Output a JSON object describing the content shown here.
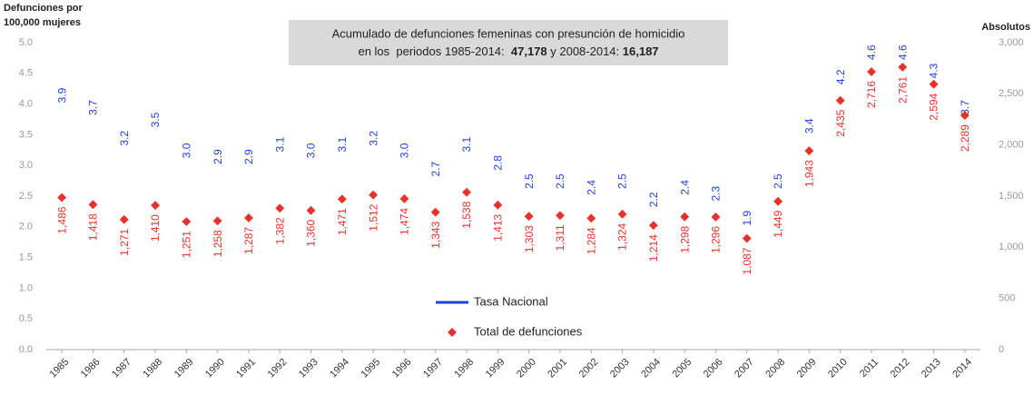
{
  "chart_data": {
    "type": "line",
    "y_title": [
      "Defunciones por",
      "100,000 mujeres"
    ],
    "y2_title": "Absolutos",
    "annotation": [
      "Acumulado de defunciones femeninas con presunción de homicidio",
      "en los  periodos 1985-2014:  ",
      "47,178",
      " y 2008-2014: ",
      "16,187"
    ],
    "categories": [
      "1985",
      "1986",
      "1987",
      "1988",
      "1989",
      "1990",
      "1991",
      "1992",
      "1993",
      "1994",
      "1995",
      "1996",
      "1997",
      "1998",
      "1999",
      "2000",
      "2001",
      "2002",
      "2003",
      "2004",
      "2005",
      "2006",
      "2007",
      "2008",
      "2009",
      "2010",
      "2011",
      "2012",
      "2013",
      "2014"
    ],
    "series": [
      {
        "name": "Tasa Nacional",
        "color": "#1f3fd8",
        "type": "line",
        "values": [
          3.9,
          3.7,
          3.2,
          3.5,
          3.0,
          2.9,
          2.9,
          3.1,
          3.0,
          3.1,
          3.2,
          3.0,
          2.7,
          3.1,
          2.8,
          2.5,
          2.5,
          2.4,
          2.5,
          2.2,
          2.4,
          2.3,
          1.9,
          2.5,
          3.4,
          4.2,
          4.6,
          4.6,
          4.3,
          3.7
        ],
        "value_labels": [
          "3.9",
          "3.7",
          "3.2",
          "3.5",
          "3.0",
          "2.9",
          "2.9",
          "3.1",
          "3.0",
          "3.1",
          "3.2",
          "3.0",
          "2.7",
          "3.1",
          "2.8",
          "2.5",
          "2.5",
          "2.4",
          "2.5",
          "2.2",
          "2.4",
          "2.3",
          "1.9",
          "2.5",
          "3.4",
          "4.2",
          "4.6",
          "4.6",
          "4.3",
          "3.7"
        ]
      },
      {
        "name": "Total de defunciones",
        "color": "#e8312a",
        "type": "scatter",
        "axis": "y2",
        "values": [
          1486,
          1418,
          1271,
          1410,
          1251,
          1258,
          1287,
          1382,
          1360,
          1471,
          1512,
          1474,
          1343,
          1538,
          1413,
          1303,
          1311,
          1284,
          1324,
          1214,
          1298,
          1296,
          1087,
          1449,
          1943,
          2435,
          2716,
          2761,
          2594,
          2289
        ],
        "value_labels": [
          "1,486",
          "1,418",
          "1,271",
          "1,410",
          "1,251",
          "1,258",
          "1,287",
          "1,382",
          "1,360",
          "1,471",
          "1,512",
          "1,474",
          "1,343",
          "1,538",
          "1,413",
          "1,303",
          "1,311",
          "1,284",
          "1,324",
          "1,214",
          "1,298",
          "1,296",
          "1,087",
          "1,449",
          "1,943",
          "2,435",
          "2,716",
          "2,761",
          "2,594",
          "2,289"
        ]
      }
    ],
    "ylim": [
      0,
      5
    ],
    "yticks": [
      {
        "value": 0,
        "label": "0.0"
      },
      0.5,
      {
        "value": 1,
        "label": "1.0"
      },
      1.5,
      {
        "value": 2,
        "label": "2.0"
      },
      2.5,
      {
        "value": 3,
        "label": "3.0"
      },
      3.5,
      {
        "value": 4,
        "label": "4.0"
      },
      4.5,
      {
        "value": 5,
        "label": "5.0"
      }
    ],
    "y2lim": [
      0,
      3000
    ],
    "y2ticks": [
      0,
      500,
      {
        "value": 1000,
        "label": "1,000"
      },
      {
        "value": 1500,
        "label": "1,500"
      },
      {
        "value": 2000,
        "label": "2,000"
      },
      {
        "value": 2500,
        "label": "2,500"
      },
      {
        "value": 3000,
        "label": "3,000"
      }
    ],
    "grid": false,
    "legend": "bottom"
  }
}
